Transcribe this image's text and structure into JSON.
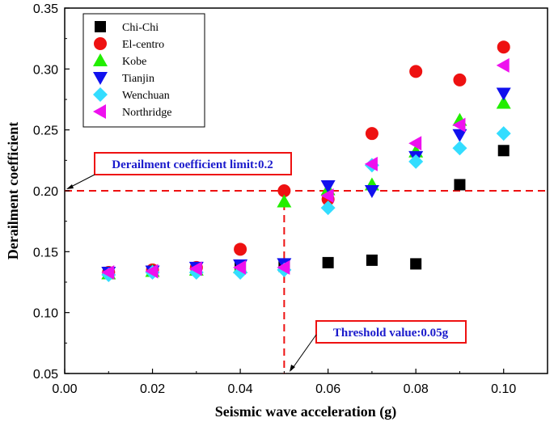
{
  "chart_data": {
    "type": "scatter",
    "xlabel": "Seismic wave acceleration  (g)",
    "ylabel": "Derailment coefficient",
    "xlim": [
      0.0,
      0.11
    ],
    "ylim": [
      0.05,
      0.35
    ],
    "xticks": [
      "0.00",
      "0.02",
      "0.04",
      "0.06",
      "0.08",
      "0.10"
    ],
    "xtick_values": [
      0.0,
      0.02,
      0.04,
      0.06,
      0.08,
      0.1
    ],
    "yticks": [
      "0.05",
      "0.10",
      "0.15",
      "0.20",
      "0.25",
      "0.30",
      "0.35"
    ],
    "ytick_values": [
      0.05,
      0.1,
      0.15,
      0.2,
      0.25,
      0.3,
      0.35
    ],
    "x": [
      0.01,
      0.02,
      0.03,
      0.04,
      0.05,
      0.06,
      0.07,
      0.08,
      0.09,
      0.1
    ],
    "series": [
      {
        "name": "Chi-Chi",
        "marker": "square",
        "color": "#000000",
        "values": [
          0.133,
          0.134,
          0.135,
          0.137,
          0.138,
          0.141,
          0.143,
          0.14,
          0.205,
          0.233
        ]
      },
      {
        "name": "El-centro",
        "marker": "circle",
        "color": "#ee1111",
        "values": [
          0.133,
          0.135,
          0.137,
          0.152,
          0.2,
          0.193,
          0.247,
          0.298,
          0.291,
          0.318
        ]
      },
      {
        "name": "Kobe",
        "marker": "triangle-up",
        "color": "#22ee00",
        "values": [
          0.132,
          0.134,
          0.135,
          0.137,
          0.191,
          0.201,
          0.205,
          0.232,
          0.258,
          0.272
        ]
      },
      {
        "name": "Tianjin",
        "marker": "triangle-down",
        "color": "#1111ee",
        "values": [
          0.133,
          0.134,
          0.137,
          0.139,
          0.14,
          0.204,
          0.2,
          0.228,
          0.246,
          0.28
        ]
      },
      {
        "name": "Wenchuan",
        "marker": "diamond",
        "color": "#33ddff",
        "values": [
          0.131,
          0.133,
          0.133,
          0.133,
          0.135,
          0.186,
          0.221,
          0.224,
          0.235,
          0.247
        ]
      },
      {
        "name": "Northridge",
        "marker": "triangle-left",
        "color": "#ee11ee",
        "values": [
          0.133,
          0.134,
          0.136,
          0.137,
          0.137,
          0.196,
          0.222,
          0.239,
          0.254,
          0.303
        ]
      }
    ],
    "reference_lines": [
      {
        "orientation": "horizontal",
        "value": 0.2,
        "color": "#ee1111",
        "style": "dashed"
      },
      {
        "orientation": "vertical",
        "value": 0.05,
        "color": "#ee1111",
        "style": "dashed"
      }
    ],
    "annotations": [
      {
        "text": "Derailment coefficient limit:0.2",
        "target_x": 0.0,
        "target_y": 0.2
      },
      {
        "text": "Threshold value:0.05g",
        "target_x": 0.05,
        "target_y": 0.05
      }
    ],
    "legend_position": "top-left",
    "grid": false
  }
}
